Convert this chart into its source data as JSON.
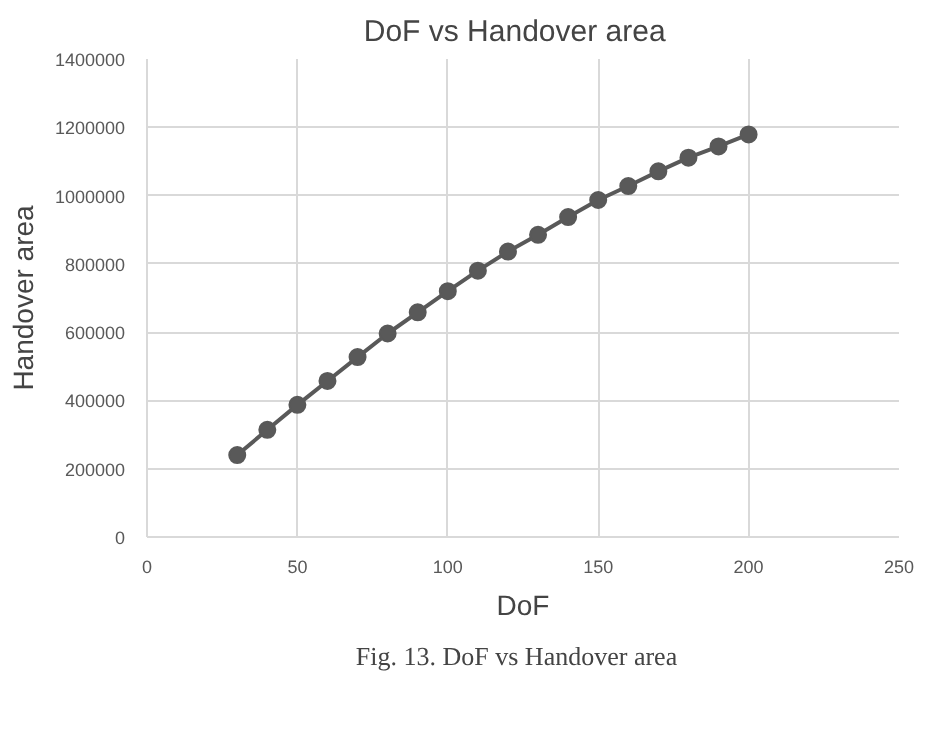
{
  "chart_data": {
    "type": "line",
    "title": "DoF  vs  Handover area",
    "xlabel": "DoF",
    "ylabel": "Handover area",
    "annotations": [
      "Fig. 13. DoF vs   Handover area"
    ],
    "x": [
      30,
      40,
      50,
      60,
      70,
      80,
      90,
      100,
      110,
      120,
      130,
      140,
      150,
      160,
      170,
      180,
      190,
      200
    ],
    "series": [
      {
        "color": "#595959",
        "values": [
          240000,
          314000,
          387000,
          457000,
          527000,
          596000,
          658000,
          720000,
          780000,
          836000,
          885000,
          937000,
          987000,
          1028000,
          1071000,
          1111000,
          1144000,
          1179000
        ]
      }
    ],
    "xlim": [
      0,
      250
    ],
    "xticks": [
      0,
      50,
      100,
      150,
      200,
      250
    ],
    "ylim": [
      0,
      1400000
    ],
    "yticks": [
      0,
      200000,
      400000,
      600000,
      800000,
      1000000,
      1200000,
      1400000
    ],
    "grid": true,
    "marker": "circle",
    "line_style": "solid"
  }
}
